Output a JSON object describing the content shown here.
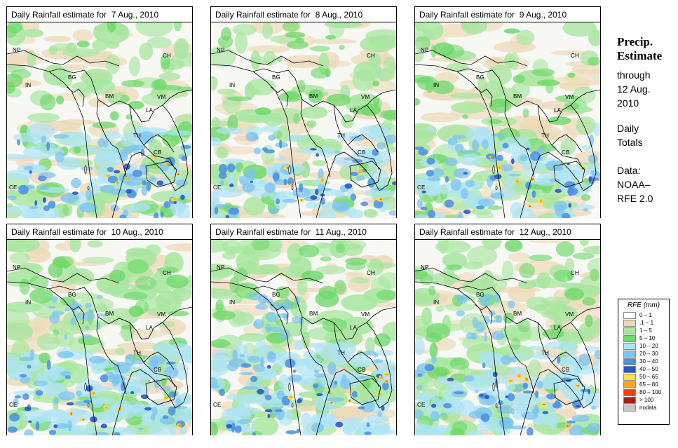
{
  "panels": [
    {
      "title": "Daily Rainfall estimate for  7 Aug., 2010"
    },
    {
      "title": "Daily Rainfall estimate for  8 Aug., 2010"
    },
    {
      "title": "Daily Rainfall estimate for  9 Aug., 2010"
    },
    {
      "title": "Daily Rainfall estimate for  10 Aug., 2010"
    },
    {
      "title": "Daily Rainfall estimate for  11 Aug., 2010"
    },
    {
      "title": "Daily Rainfall estimate for  12 Aug., 2010"
    }
  ],
  "country_labels": {
    "np": "NP",
    "ch": "CH",
    "bg": "BG",
    "in": "IN",
    "bm": "BM",
    "vm": "VM",
    "la": "LA",
    "th": "TH",
    "cb": "CB",
    "ce": "CE"
  },
  "side": {
    "title_line1": "Precip.",
    "title_line2": "Estimate",
    "through": "through",
    "date_line1": "12 Aug.",
    "date_line2": "2010",
    "daily": "Daily",
    "totals": "Totals",
    "data": "Data:",
    "source_line1": "NOAA–",
    "source_line2": "RFE 2.0"
  },
  "legend": {
    "title": "RFE (mm)",
    "items": [
      {
        "label": "0 – 1",
        "color": "#ffffff"
      },
      {
        "label": ".1 – 1",
        "color": "#ecd9b8"
      },
      {
        "label": "1 – 5",
        "color": "#a8e6a0"
      },
      {
        "label": "5 – 10",
        "color": "#6fd86a"
      },
      {
        "label": "10 – 20",
        "color": "#aee4f7"
      },
      {
        "label": "20 – 30",
        "color": "#7cc3f0"
      },
      {
        "label": "30 – 40",
        "color": "#4a8fe0"
      },
      {
        "label": "40 – 50",
        "color": "#2a56c8"
      },
      {
        "label": "50 – 65",
        "color": "#f7e04a"
      },
      {
        "label": "65 – 80",
        "color": "#f5a623"
      },
      {
        "label": "80 – 100",
        "color": "#e8410e"
      },
      {
        "label": "> 100",
        "color": "#a0201a"
      },
      {
        "label": "nodata",
        "color": "#c8c8c8"
      }
    ]
  }
}
